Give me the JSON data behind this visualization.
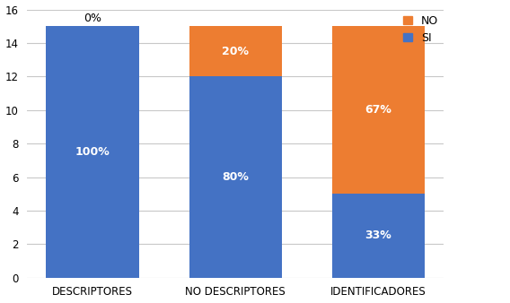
{
  "categories": [
    "DESCRIPTORES",
    "NO DESCRIPTORES",
    "IDENTIFICADORES"
  ],
  "si_values": [
    15,
    12,
    5
  ],
  "no_values": [
    0,
    3,
    10
  ],
  "si_labels": [
    "100%",
    "80%",
    "33%"
  ],
  "no_labels": [
    "0%",
    "20%",
    "67%"
  ],
  "si_color": "#4472C4",
  "no_color": "#ED7D31",
  "ylim": [
    0,
    16
  ],
  "yticks": [
    0,
    2,
    4,
    6,
    8,
    10,
    12,
    14,
    16
  ],
  "bar_width": 0.65,
  "label_fontsize": 9,
  "tick_fontsize": 8.5,
  "legend_fontsize": 9,
  "background_color": "#ffffff",
  "grid_color": "#c8c8c8"
}
